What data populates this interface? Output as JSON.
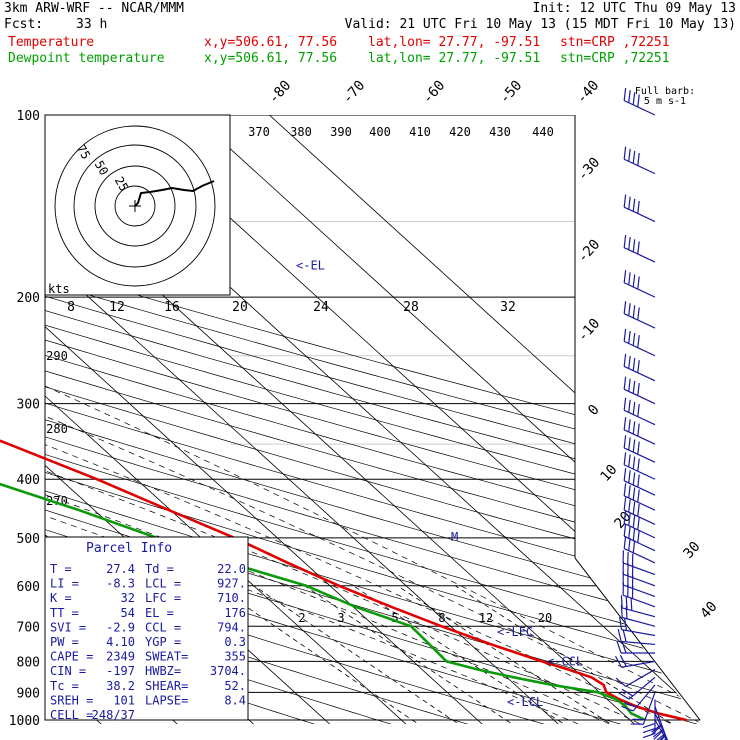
{
  "header": {
    "model": "3km ARW-WRF -- NCAR/MMM",
    "init": "Init: 12 UTC Thu 09 May 13",
    "fcst_label": "Fcst:",
    "fcst_value": "33 h",
    "valid": "Valid: 21 UTC Fri 10 May 13 (15 MDT Fri 10 May 13)",
    "line_temp": {
      "name": "Temperature",
      "xy": "x,y=506.61, 77.56",
      "latlon": "lat,lon= 27.77, -97.51",
      "stn": "stn=CRP ,72251"
    },
    "line_dew": {
      "name": "Dewpoint temperature",
      "xy": "x,y=506.61, 77.56",
      "latlon": "lat,lon= 27.77, -97.51",
      "stn": "stn=CRP ,72251"
    }
  },
  "colors": {
    "temperature": "#e00000",
    "dewpoint": "#0a9a0a",
    "barb": "#1a1aa0",
    "text_blue": "#1a1aa0",
    "grid": "#000000",
    "dry_adiabat": "#000000",
    "isopleth": "#888888"
  },
  "barb_legend": {
    "title": "Full barb:",
    "value": "5 m s-1"
  },
  "parcel_info": {
    "title": "Parcel Info",
    "rows": [
      [
        "T  =",
        "27.4",
        "Td =",
        "22.0"
      ],
      [
        "LI =",
        "-8.3",
        "LCL =",
        "927."
      ],
      [
        "K  =",
        "32",
        "LFC =",
        "710."
      ],
      [
        "TT =",
        "54",
        "EL =",
        "176"
      ],
      [
        "SVI =",
        "-2.9",
        "CCL =",
        "794."
      ],
      [
        "PW =",
        "4.10",
        "YGP =",
        "0.3"
      ],
      [
        "CAPE =",
        "2349",
        "SWEAT=",
        "355"
      ],
      [
        "CIN =",
        "-197",
        "HWBZ=",
        "3704."
      ],
      [
        "Tc =",
        "38.2",
        "SHEAR=",
        "52."
      ],
      [
        "SREH =",
        "101",
        "LAPSE=",
        "8.4"
      ],
      [
        "CELL =",
        "248/37",
        "",
        ""
      ]
    ]
  },
  "level_labels": [
    {
      "text": "<-EL",
      "p": 176
    },
    {
      "text": "<-LFC",
      "p": 710
    },
    {
      "text": "<-CCL",
      "p": 794
    },
    {
      "text": "<-LCL",
      "p": 927
    }
  ],
  "hodograph": {
    "unit": "kts",
    "ring_labels": [
      "75",
      "50",
      "25"
    ],
    "speed_scale": [
      "8",
      "12",
      "16",
      "20",
      "24",
      "28",
      "32"
    ]
  },
  "chart_data": {
    "type": "line",
    "title": "",
    "ylabel": "",
    "y_scale": "log",
    "ylim": [
      1000,
      100
    ],
    "pressure_ticks": [
      100,
      200,
      300,
      400,
      500,
      600,
      700,
      800,
      900,
      1000
    ],
    "isotherm_labels": [
      "-80",
      "-70",
      "-60",
      "-50",
      "-40",
      "-30",
      "-20",
      "-10",
      "0",
      "10",
      "20",
      "30",
      "40"
    ],
    "theta_labels": [
      "370",
      "380",
      "390",
      "400",
      "410",
      "420",
      "430",
      "440"
    ],
    "theta_side_labels": [
      "290",
      "280",
      "270"
    ],
    "mixing_ratio_labels": [
      "2",
      "3",
      "5",
      "8",
      "12",
      "20"
    ],
    "series": [
      {
        "name": "Temperature",
        "points": [
          {
            "p": 1000,
            "t": 27.4
          },
          {
            "p": 975,
            "t": 24.6
          },
          {
            "p": 950,
            "t": 22.8
          },
          {
            "p": 925,
            "t": 21.6
          },
          {
            "p": 900,
            "t": 20.9
          },
          {
            "p": 875,
            "t": 21.6
          },
          {
            "p": 850,
            "t": 21.1
          },
          {
            "p": 825,
            "t": 19.2
          },
          {
            "p": 800,
            "t": 16.9
          },
          {
            "p": 750,
            "t": 12.7
          },
          {
            "p": 700,
            "t": 8.8
          },
          {
            "p": 650,
            "t": 5.0
          },
          {
            "p": 600,
            "t": 1.2
          },
          {
            "p": 550,
            "t": -2.2
          },
          {
            "p": 500,
            "t": -5.6
          },
          {
            "p": 450,
            "t": -10.2
          },
          {
            "p": 400,
            "t": -15.2
          },
          {
            "p": 350,
            "t": -21.7
          },
          {
            "p": 300,
            "t": -29.3
          },
          {
            "p": 250,
            "t": -38.6
          },
          {
            "p": 200,
            "t": -49.3
          },
          {
            "p": 175,
            "t": -56.7
          },
          {
            "p": 150,
            "t": -60.8
          },
          {
            "p": 125,
            "t": -62.7
          },
          {
            "p": 100,
            "t": -67.5
          }
        ]
      },
      {
        "name": "Dewpoint temperature",
        "points": [
          {
            "p": 1000,
            "t": 22.0
          },
          {
            "p": 975,
            "t": 21.1
          },
          {
            "p": 950,
            "t": 21.4
          },
          {
            "p": 925,
            "t": 21.2
          },
          {
            "p": 900,
            "t": 19.8
          },
          {
            "p": 875,
            "t": 14.8
          },
          {
            "p": 850,
            "t": 10.9
          },
          {
            "p": 825,
            "t": 7.3
          },
          {
            "p": 800,
            "t": 4.4
          },
          {
            "p": 750,
            "t": 4.6
          },
          {
            "p": 700,
            "t": 4.8
          },
          {
            "p": 650,
            "t": 0.3
          },
          {
            "p": 600,
            "t": -3.1
          },
          {
            "p": 550,
            "t": -9.9
          },
          {
            "p": 500,
            "t": -15.8
          },
          {
            "p": 450,
            "t": -22.0
          },
          {
            "p": 400,
            "t": -29.9
          },
          {
            "p": 350,
            "t": -41.3
          },
          {
            "p": 300,
            "t": -52.0
          },
          {
            "p": 250,
            "t": -59.9
          },
          {
            "p": 200,
            "t": -68.5
          },
          {
            "p": 175,
            "t": -72.6
          },
          {
            "p": 150,
            "t": -75.6
          },
          {
            "p": 125,
            "t": -79.1
          },
          {
            "p": 100,
            "t": -82.6
          }
        ]
      }
    ],
    "wind_barbs": [
      {
        "p": 1000,
        "dir": 150,
        "spd": 20
      },
      {
        "p": 975,
        "dir": 155,
        "spd": 25
      },
      {
        "p": 950,
        "dir": 160,
        "spd": 20
      },
      {
        "p": 925,
        "dir": 180,
        "spd": 15
      },
      {
        "p": 900,
        "dir": 200,
        "spd": 10
      },
      {
        "p": 875,
        "dir": 220,
        "spd": 10
      },
      {
        "p": 850,
        "dir": 230,
        "spd": 10
      },
      {
        "p": 825,
        "dir": 240,
        "spd": 5
      },
      {
        "p": 800,
        "dir": 260,
        "spd": 10
      },
      {
        "p": 775,
        "dir": 270,
        "spd": 10
      },
      {
        "p": 750,
        "dir": 275,
        "spd": 10
      },
      {
        "p": 725,
        "dir": 280,
        "spd": 10
      },
      {
        "p": 700,
        "dir": 285,
        "spd": 10
      },
      {
        "p": 675,
        "dir": 285,
        "spd": 15
      },
      {
        "p": 650,
        "dir": 290,
        "spd": 15
      },
      {
        "p": 625,
        "dir": 290,
        "spd": 15
      },
      {
        "p": 600,
        "dir": 290,
        "spd": 15
      },
      {
        "p": 575,
        "dir": 290,
        "spd": 15
      },
      {
        "p": 550,
        "dir": 295,
        "spd": 15
      },
      {
        "p": 525,
        "dir": 295,
        "spd": 20
      },
      {
        "p": 500,
        "dir": 295,
        "spd": 20
      },
      {
        "p": 475,
        "dir": 295,
        "spd": 20
      },
      {
        "p": 450,
        "dir": 295,
        "spd": 20
      },
      {
        "p": 425,
        "dir": 295,
        "spd": 20
      },
      {
        "p": 400,
        "dir": 295,
        "spd": 20
      },
      {
        "p": 375,
        "dir": 295,
        "spd": 20
      },
      {
        "p": 350,
        "dir": 295,
        "spd": 20
      },
      {
        "p": 325,
        "dir": 295,
        "spd": 20
      },
      {
        "p": 300,
        "dir": 295,
        "spd": 20
      },
      {
        "p": 275,
        "dir": 295,
        "spd": 20
      },
      {
        "p": 250,
        "dir": 295,
        "spd": 20
      },
      {
        "p": 225,
        "dir": 295,
        "spd": 20
      },
      {
        "p": 200,
        "dir": 295,
        "spd": 20
      },
      {
        "p": 175,
        "dir": 295,
        "spd": 20
      },
      {
        "p": 150,
        "dir": 295,
        "spd": 20
      },
      {
        "p": 125,
        "dir": 295,
        "spd": 20
      },
      {
        "p": 100,
        "dir": 295,
        "spd": 20
      }
    ]
  }
}
